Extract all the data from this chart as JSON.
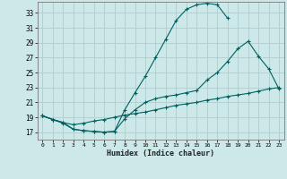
{
  "xlabel": "Humidex (Indice chaleur)",
  "bg_color": "#cce8e8",
  "grid_color": "#b0cccc",
  "line_color": "#006060",
  "xlim": [
    -0.5,
    23.5
  ],
  "ylim": [
    16.0,
    34.5
  ],
  "yticks": [
    17,
    19,
    21,
    23,
    25,
    27,
    29,
    31,
    33
  ],
  "xticks": [
    0,
    1,
    2,
    3,
    4,
    5,
    6,
    7,
    8,
    9,
    10,
    11,
    12,
    13,
    14,
    15,
    16,
    17,
    18,
    19,
    20,
    21,
    22,
    23
  ],
  "curve1_x": [
    0,
    1,
    2,
    3,
    4,
    5,
    6,
    7,
    8,
    9,
    10,
    11,
    12,
    13,
    14,
    15,
    16,
    17,
    18
  ],
  "curve1_y": [
    19.2,
    18.7,
    18.3,
    17.4,
    17.2,
    17.1,
    17.0,
    17.1,
    20.0,
    22.3,
    24.5,
    27.0,
    29.5,
    32.0,
    33.5,
    34.1,
    34.3,
    34.1,
    32.3
  ],
  "curve2_x": [
    0,
    1,
    2,
    3,
    4,
    5,
    6,
    7,
    8,
    9,
    10,
    11,
    12,
    13,
    14,
    15,
    16,
    17,
    18,
    19,
    20,
    21,
    22,
    23
  ],
  "curve2_y": [
    19.2,
    18.7,
    18.2,
    17.4,
    17.2,
    17.1,
    17.0,
    17.1,
    18.8,
    20.0,
    21.0,
    21.5,
    21.8,
    22.0,
    22.3,
    22.6,
    24.0,
    25.0,
    26.5,
    28.2,
    29.2,
    27.2,
    25.5,
    22.8
  ],
  "curve3_x": [
    0,
    1,
    2,
    3,
    4,
    5,
    6,
    7,
    8,
    9,
    10,
    11,
    12,
    13,
    14,
    15,
    16,
    17,
    18,
    19,
    20,
    21,
    22,
    23
  ],
  "curve3_y": [
    19.2,
    18.7,
    18.3,
    18.0,
    18.2,
    18.5,
    18.7,
    19.0,
    19.3,
    19.5,
    19.7,
    20.0,
    20.3,
    20.6,
    20.8,
    21.0,
    21.3,
    21.5,
    21.8,
    22.0,
    22.2,
    22.5,
    22.8,
    23.0
  ]
}
